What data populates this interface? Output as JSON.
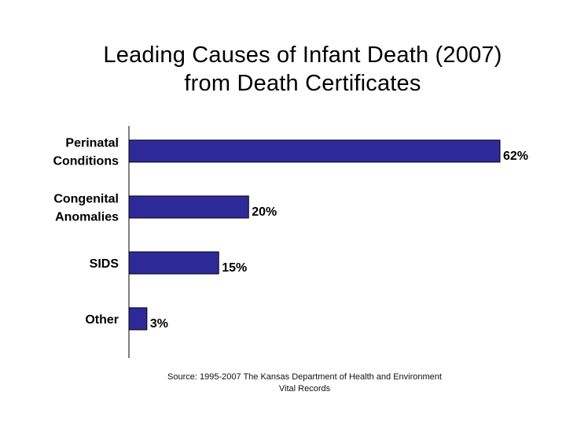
{
  "title_line1": "Leading Causes of Infant Death (2007)",
  "title_line2": "from Death Certificates",
  "chart_data": {
    "type": "bar",
    "orientation": "horizontal",
    "categories": [
      [
        "Perinatal",
        "Conditions"
      ],
      [
        "Congenital",
        "Anomalies"
      ],
      [
        "SIDS"
      ],
      [
        "Other"
      ]
    ],
    "values": [
      62,
      20,
      15,
      3
    ],
    "value_labels": [
      "62%",
      "20%",
      "15%",
      "3%"
    ],
    "xlim": [
      0,
      62
    ],
    "grid": false,
    "bar_color": "#2e2a9a"
  },
  "source_line1": "Source:  1995-2007 The Kansas Department of Health and Environment",
  "source_line2": "Vital Records"
}
